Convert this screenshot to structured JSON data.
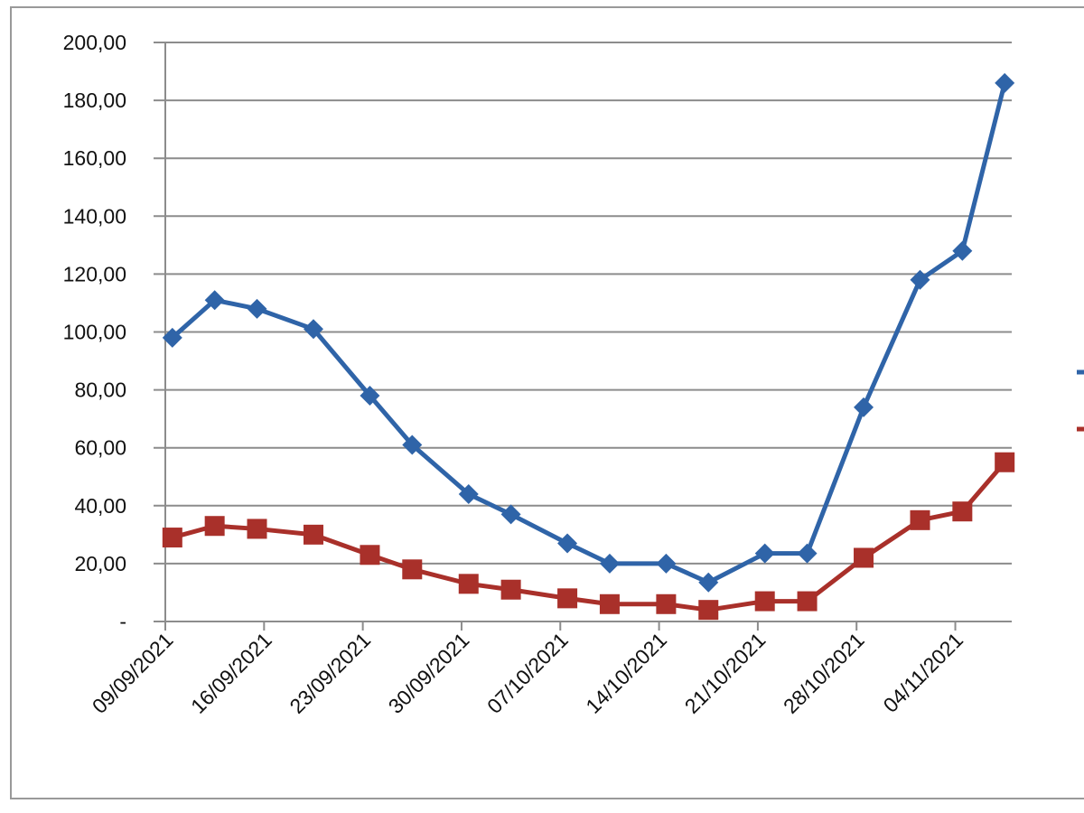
{
  "chart_data": {
    "type": "line",
    "x": [
      "2021-09-09",
      "2021-09-12",
      "2021-09-15",
      "2021-09-19",
      "2021-09-23",
      "2021-09-26",
      "2021-09-30",
      "2021-10-03",
      "2021-10-07",
      "2021-10-10",
      "2021-10-14",
      "2021-10-17",
      "2021-10-21",
      "2021-10-24",
      "2021-10-28",
      "2021-11-01",
      "2021-11-04",
      "2021-11-07"
    ],
    "series": [
      {
        "color": "#2f64a8",
        "marker": "diamond",
        "values": [
          98,
          111,
          108,
          101,
          78,
          61,
          44,
          37,
          27,
          20,
          20,
          13.5,
          23.5,
          23.5,
          74,
          118,
          128,
          186
        ]
      },
      {
        "color": "#a9302a",
        "marker": "square",
        "values": [
          29,
          33,
          32,
          30,
          23,
          18,
          13,
          11,
          8,
          6,
          6,
          4,
          7,
          7,
          22,
          35,
          38,
          55
        ]
      }
    ],
    "xlim": [
      "2021-09-09",
      "2021-11-08"
    ],
    "xticks": [
      {
        "value": "2021-09-09",
        "label": "09/09/2021"
      },
      {
        "value": "2021-09-16",
        "label": "16/09/2021"
      },
      {
        "value": "2021-09-23",
        "label": "23/09/2021"
      },
      {
        "value": "2021-09-30",
        "label": "30/09/2021"
      },
      {
        "value": "2021-10-07",
        "label": "07/10/2021"
      },
      {
        "value": "2021-10-14",
        "label": "14/10/2021"
      },
      {
        "value": "2021-10-21",
        "label": "21/10/2021"
      },
      {
        "value": "2021-10-28",
        "label": "28/10/2021"
      },
      {
        "value": "2021-11-04",
        "label": "04/11/2021"
      }
    ],
    "ylim": [
      0,
      200
    ],
    "yticks": [
      {
        "value": 0,
        "label": "-"
      },
      {
        "value": 20,
        "label": "20,00"
      },
      {
        "value": 40,
        "label": "40,00"
      },
      {
        "value": 60,
        "label": "60,00"
      },
      {
        "value": 80,
        "label": "80,00"
      },
      {
        "value": 100,
        "label": "100,00"
      },
      {
        "value": 120,
        "label": "120,00"
      },
      {
        "value": 140,
        "label": "140,00"
      },
      {
        "value": 160,
        "label": "160,00"
      },
      {
        "value": 180,
        "label": "180,00"
      },
      {
        "value": 200,
        "label": "200,00"
      }
    ],
    "grid": true
  }
}
